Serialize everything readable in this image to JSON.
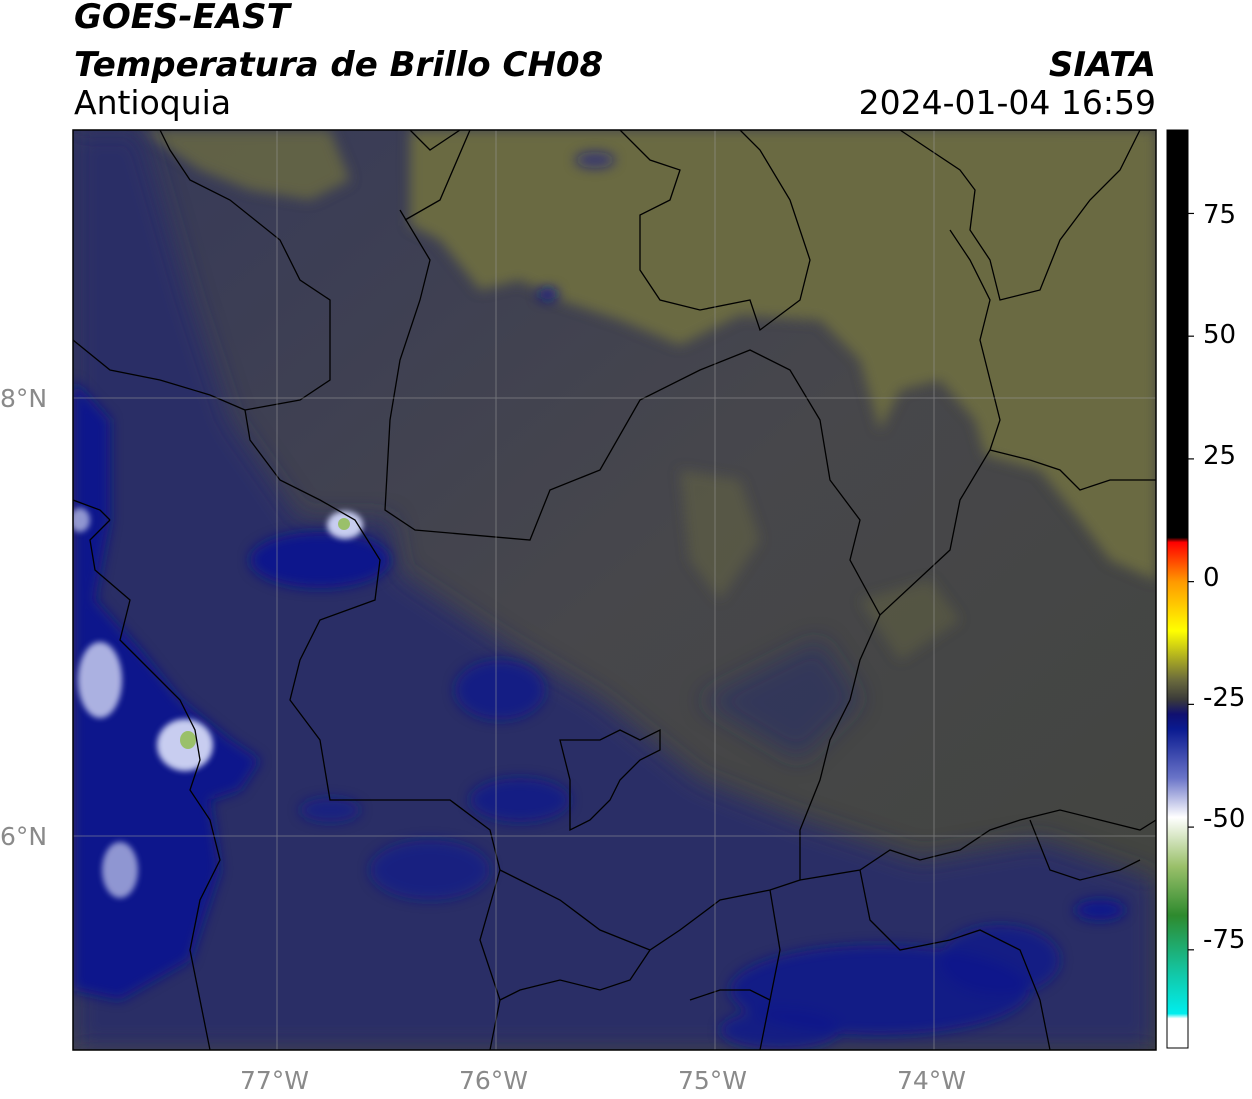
{
  "header": {
    "satellite": "GOES-EAST",
    "product": "Temperatura de Brillo CH08",
    "region": "Antioquia",
    "agency": "SIATA",
    "datetime": "2024-01-04 16:59"
  },
  "map": {
    "lon_range": [
      -77.95,
      -73.0
    ],
    "lat_range": [
      5.05,
      9.25
    ],
    "gridlines": true,
    "lon_ticks": [
      {
        "value": -77,
        "label": "77°W"
      },
      {
        "value": -76,
        "label": "76°W"
      },
      {
        "value": -75,
        "label": "75°W"
      },
      {
        "value": -74,
        "label": "74°W"
      }
    ],
    "lat_ticks": [
      {
        "value": 8,
        "label": "8°N"
      },
      {
        "value": 6,
        "label": "6°N"
      }
    ],
    "colors": {
      "warm_haze": "#6a6a40",
      "mid_gray": "#4a4a4a",
      "cool_navy": "#2a2e5a",
      "cold_blue": "#0c1a8c",
      "very_cold": "#d8d8f0"
    }
  },
  "colorbar": {
    "range": [
      -95,
      92
    ],
    "ticks": [
      {
        "value": 75,
        "label": "75"
      },
      {
        "value": 50,
        "label": "50"
      },
      {
        "value": 25,
        "label": "25"
      },
      {
        "value": 0,
        "label": "0"
      },
      {
        "value": -25,
        "label": "-25"
      },
      {
        "value": -50,
        "label": "-50"
      },
      {
        "value": -75,
        "label": "-75"
      }
    ],
    "stops": [
      {
        "value": 92,
        "color": "#000000"
      },
      {
        "value": 9,
        "color": "#000000"
      },
      {
        "value": 8,
        "color": "#ff0000"
      },
      {
        "value": 0,
        "color": "#ff9900"
      },
      {
        "value": -10,
        "color": "#ffff00"
      },
      {
        "value": -20,
        "color": "#6b6b3c"
      },
      {
        "value": -24,
        "color": "#3a3a3a"
      },
      {
        "value": -27,
        "color": "#101070"
      },
      {
        "value": -30,
        "color": "#0a1a90"
      },
      {
        "value": -40,
        "color": "#6a74c8"
      },
      {
        "value": -48,
        "color": "#ffffff"
      },
      {
        "value": -58,
        "color": "#9ac06a"
      },
      {
        "value": -68,
        "color": "#2e8a2e"
      },
      {
        "value": -80,
        "color": "#12c8a8"
      },
      {
        "value": -88,
        "color": "#00eeee"
      },
      {
        "value": -89,
        "color": "#ffffff"
      },
      {
        "value": -95,
        "color": "#ffffff"
      }
    ]
  }
}
